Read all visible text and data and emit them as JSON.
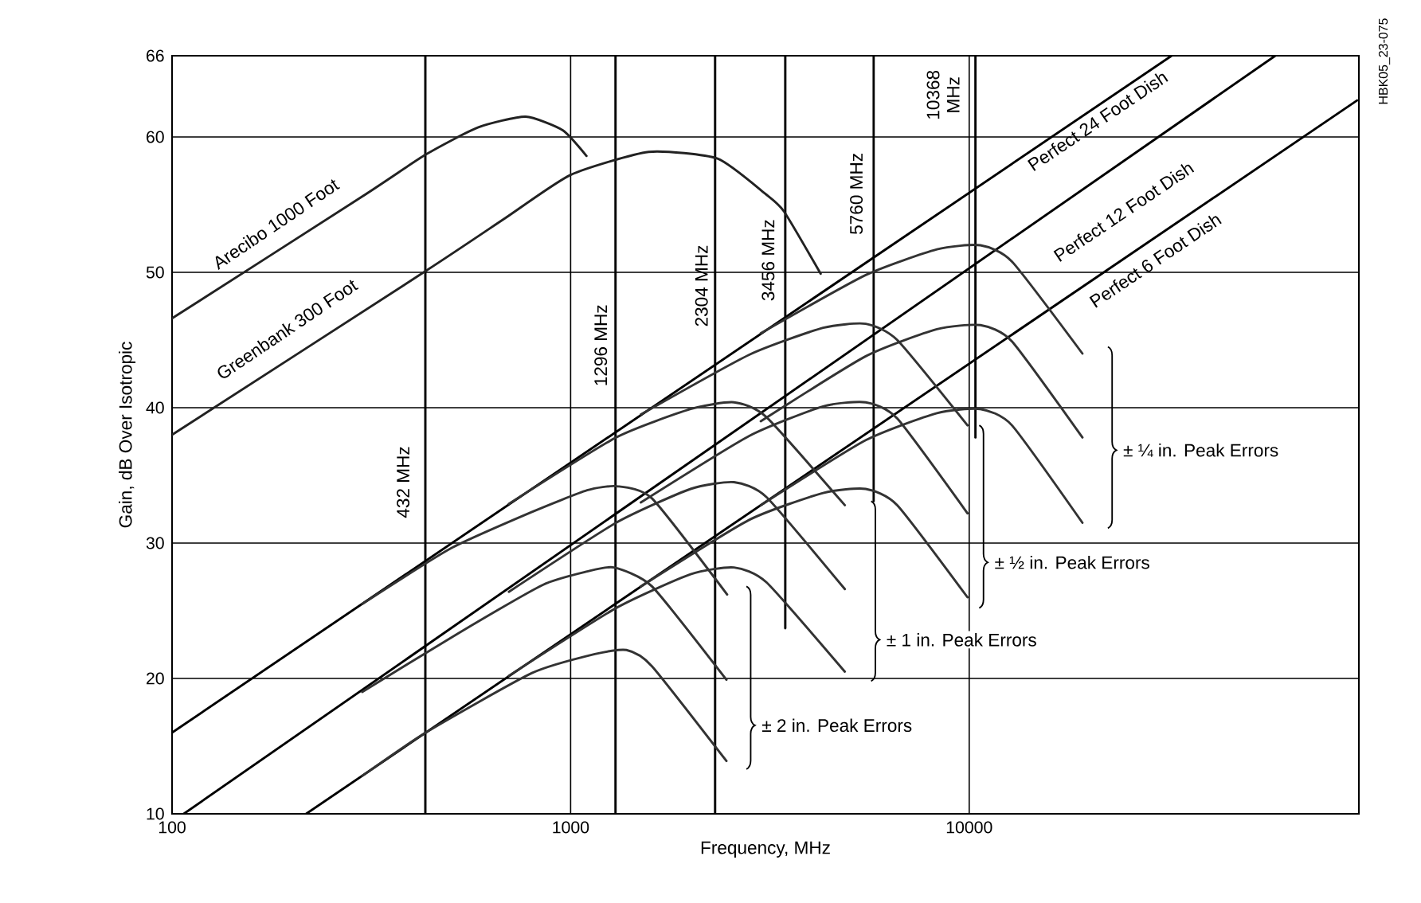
{
  "chart_data": {
    "type": "line",
    "xlabel": "Frequency, MHz",
    "ylabel": "Gain, dB Over Isotropic",
    "log": "x",
    "grid": true,
    "xlim": [
      100,
      95000
    ],
    "xticks": [
      100,
      1000,
      10000
    ],
    "ylim": [
      10,
      66
    ],
    "yticks": [
      10,
      20,
      30,
      40,
      50,
      60,
      66
    ],
    "series": [
      {
        "name": "432 MHz",
        "color": "#000000",
        "x": [
          432,
          432
        ],
        "values": [
          10,
          66
        ]
      },
      {
        "name": "1296 MHz",
        "color": "#000000",
        "x": [
          1296,
          1296
        ],
        "values": [
          10,
          66
        ]
      },
      {
        "name": "2304 MHz",
        "color": "#000000",
        "x": [
          2304,
          2304
        ],
        "values": [
          10,
          66
        ]
      },
      {
        "name": "3456 MHz",
        "color": "#000000",
        "x": [
          3456,
          3456
        ],
        "values": [
          23.7,
          66
        ]
      },
      {
        "name": "5760 MHz",
        "color": "#000000",
        "x": [
          5760,
          5760
        ],
        "values": [
          33.1,
          66
        ]
      },
      {
        "name": "10368 MHz",
        "color": "#000000",
        "x": [
          10368,
          10368
        ],
        "values": [
          37.8,
          66
        ]
      },
      {
        "name": "Perfect 24 Foot Dish",
        "color": "#000000",
        "x": [
          100,
          32200
        ],
        "values": [
          16,
          66
        ]
      },
      {
        "name": "Perfect 12 Foot Dish",
        "color": "#000000",
        "x": [
          107,
          58600
        ],
        "values": [
          10,
          66
        ]
      },
      {
        "name": "Perfect 6 Foot Dish",
        "color": "#000000",
        "x": [
          217,
          94000
        ],
        "values": [
          10,
          62.7
        ]
      },
      {
        "name": "Arecibo 1000 Foot",
        "color": "#222222",
        "x": [
          100,
          300,
          433,
          585,
          771,
          955,
          1096
        ],
        "values": [
          46.6,
          55.6,
          58.7,
          60.7,
          61.5,
          60.5,
          58.6
        ]
      },
      {
        "name": "Greenbank 300 Foot",
        "color": "#222222",
        "x": [
          100,
          433,
          685,
          1000,
          1570,
          2336,
          3080,
          3430,
          4240
        ],
        "values": [
          38.0,
          50.1,
          54.0,
          57.2,
          58.9,
          58.4,
          55.8,
          54.5,
          49.9
        ]
      },
      {
        "color": "#333333",
        "x": [
          300,
          500,
          800,
          1100,
          1306,
          1600,
          2470
        ],
        "values": [
          25.5,
          29.6,
          32.3,
          33.9,
          34.2,
          33.3,
          26.2
        ]
      },
      {
        "color": "#333333",
        "x": [
          300,
          520,
          850,
          1100,
          1284,
          1600,
          2460
        ],
        "values": [
          19.0,
          23.3,
          26.9,
          27.9,
          28.2,
          26.8,
          19.9
        ]
      },
      {
        "color": "#333333",
        "x": [
          300,
          433,
          800,
          1150,
          1380,
          1600,
          2460
        ],
        "values": [
          12.8,
          16.0,
          20.4,
          21.8,
          22.1,
          20.9,
          13.9
        ]
      },
      {
        "color": "#333333",
        "x": [
          700,
          1300,
          2000,
          2570,
          3100,
          4875
        ],
        "values": [
          32.9,
          37.8,
          39.9,
          40.4,
          39.3,
          32.8
        ]
      },
      {
        "color": "#333333",
        "x": [
          700,
          1300,
          2000,
          2570,
          3100,
          4875
        ],
        "values": [
          26.4,
          31.5,
          34.0,
          34.5,
          33.4,
          26.6
        ]
      },
      {
        "color": "#333333",
        "x": [
          700,
          1300,
          2000,
          2570,
          3100,
          4875
        ],
        "values": [
          20.2,
          25.2,
          27.7,
          28.2,
          27.1,
          20.5
        ]
      },
      {
        "color": "#333333",
        "x": [
          1500,
          2800,
          4300,
          5500,
          6600,
          9900
        ],
        "values": [
          39.5,
          43.9,
          45.9,
          46.2,
          45.0,
          38.7
        ]
      },
      {
        "color": "#333333",
        "x": [
          1500,
          2800,
          4300,
          5500,
          6600,
          9900
        ],
        "values": [
          33.0,
          37.9,
          40.1,
          40.4,
          39.2,
          32.2
        ]
      },
      {
        "color": "#333333",
        "x": [
          1500,
          2800,
          4300,
          5500,
          6600,
          9900
        ],
        "values": [
          26.8,
          31.7,
          33.7,
          34.0,
          32.8,
          26.0
        ]
      },
      {
        "color": "#333333",
        "x": [
          3000,
          5500,
          8300,
          10670,
          12800,
          19240
        ],
        "values": [
          45.5,
          49.8,
          51.7,
          52.0,
          50.8,
          44.0
        ]
      },
      {
        "color": "#333333",
        "x": [
          3000,
          5500,
          8300,
          10670,
          12800,
          19240
        ],
        "values": [
          39.0,
          43.8,
          45.8,
          46.1,
          44.9,
          37.8
        ]
      },
      {
        "color": "#333333",
        "x": [
          3000,
          5500,
          8300,
          10670,
          12800,
          19240
        ],
        "values": [
          32.8,
          37.6,
          39.6,
          39.9,
          38.7,
          31.5
        ]
      }
    ],
    "annotations": [
      "± 2 in. Peak Errors",
      "± 1 in. Peak Errors",
      "± ½ in. Peak Errors",
      "± ¼ in. Peak Errors",
      "HBK05_23-075"
    ]
  }
}
